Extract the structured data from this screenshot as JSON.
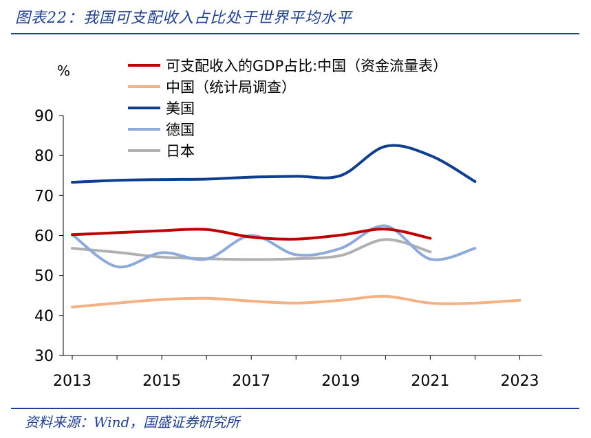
{
  "header": {
    "title": "图表22：我国可支配收入占比处于世界平均水平"
  },
  "footer": {
    "source": "资料来源：Wind，国盛证券研究所"
  },
  "chart_data": {
    "type": "line",
    "title": "",
    "xlabel": "",
    "ylabel": "%",
    "xlim": [
      2012.8,
      2023.5
    ],
    "ylim": [
      30,
      90
    ],
    "xticks": [
      "2013",
      "2015",
      "2017",
      "2019",
      "2021",
      "2023"
    ],
    "yticks": [
      "30",
      "40",
      "50",
      "60",
      "70",
      "80",
      "90"
    ],
    "legend_position": "top-left",
    "grid": false,
    "series": [
      {
        "name": "可支配收入的GDP占比:中国（资金流量表）",
        "color": "#c00000",
        "x": [
          2013,
          2014,
          2015,
          2016,
          2017,
          2018,
          2019,
          2020,
          2021
        ],
        "y": [
          60.2,
          60.7,
          61.2,
          61.5,
          59.6,
          59.1,
          60.1,
          61.6,
          59.3
        ]
      },
      {
        "name": "中国（统计局调查）",
        "color": "#f4b183",
        "x": [
          2013,
          2014,
          2015,
          2016,
          2017,
          2018,
          2019,
          2020,
          2021,
          2022,
          2023
        ],
        "y": [
          42.1,
          43.1,
          44.0,
          44.3,
          43.6,
          43.1,
          43.8,
          44.8,
          43.1,
          43.1,
          43.8
        ]
      },
      {
        "name": "美国",
        "color": "#0f3e8f",
        "x": [
          2013,
          2014,
          2015,
          2016,
          2017,
          2018,
          2019,
          2020,
          2021,
          2022
        ],
        "y": [
          73.3,
          73.8,
          74.0,
          74.1,
          74.6,
          74.8,
          75.0,
          82.3,
          80.0,
          73.5
        ]
      },
      {
        "name": "德国",
        "color": "#8eaadb",
        "x": [
          2013,
          2014,
          2015,
          2016,
          2017,
          2018,
          2019,
          2020,
          2021,
          2022
        ],
        "y": [
          60.2,
          52.2,
          55.7,
          54.1,
          60.0,
          55.2,
          56.8,
          62.4,
          54.1,
          56.8
        ]
      },
      {
        "name": "日本",
        "color": "#b0b0b0",
        "x": [
          2013,
          2014,
          2015,
          2016,
          2017,
          2018,
          2019,
          2020,
          2021
        ],
        "y": [
          56.8,
          55.8,
          54.6,
          54.2,
          54.0,
          54.2,
          55.0,
          59.0,
          55.9
        ]
      }
    ]
  }
}
